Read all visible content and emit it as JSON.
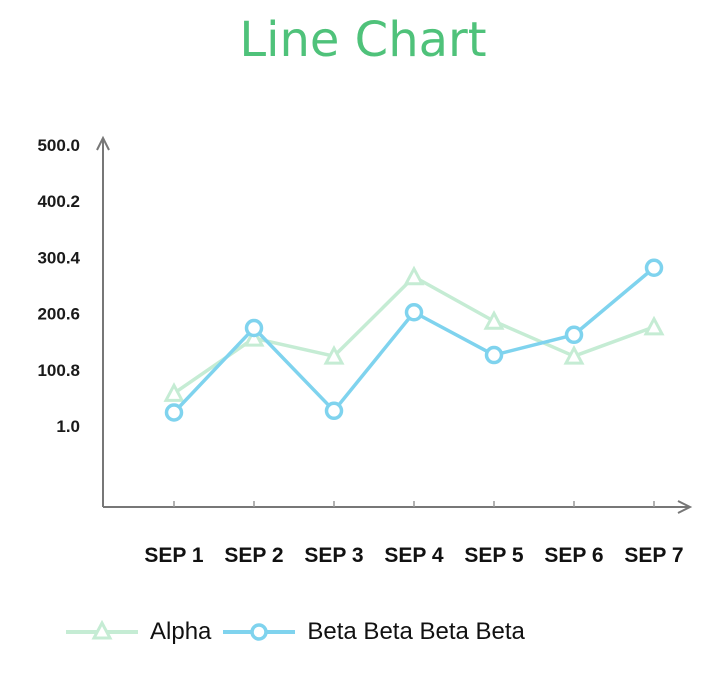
{
  "chart_data": {
    "type": "line",
    "title": "Line Chart",
    "title_color": "#4fc27a",
    "categories": [
      "SEP 1",
      "SEP 2",
      "SEP 3",
      "SEP 4",
      "SEP 5",
      "SEP 6",
      "SEP 7"
    ],
    "y_ticks": [
      "500.0",
      "400.2",
      "300.4",
      "200.6",
      "100.8",
      "1.0"
    ],
    "ylim": [
      1.0,
      500.0
    ],
    "grid": false,
    "legend_position": "bottom-left",
    "series": [
      {
        "name": "Alpha",
        "marker": "triangle",
        "color": "#c5ecd4",
        "values": [
          59,
          157,
          125,
          266,
          187,
          125,
          177
        ]
      },
      {
        "name": "Beta Beta Beta Beta",
        "marker": "circle",
        "color": "#7fd3ee",
        "values": [
          25,
          175,
          28,
          203,
          127,
          163,
          282
        ]
      }
    ]
  }
}
